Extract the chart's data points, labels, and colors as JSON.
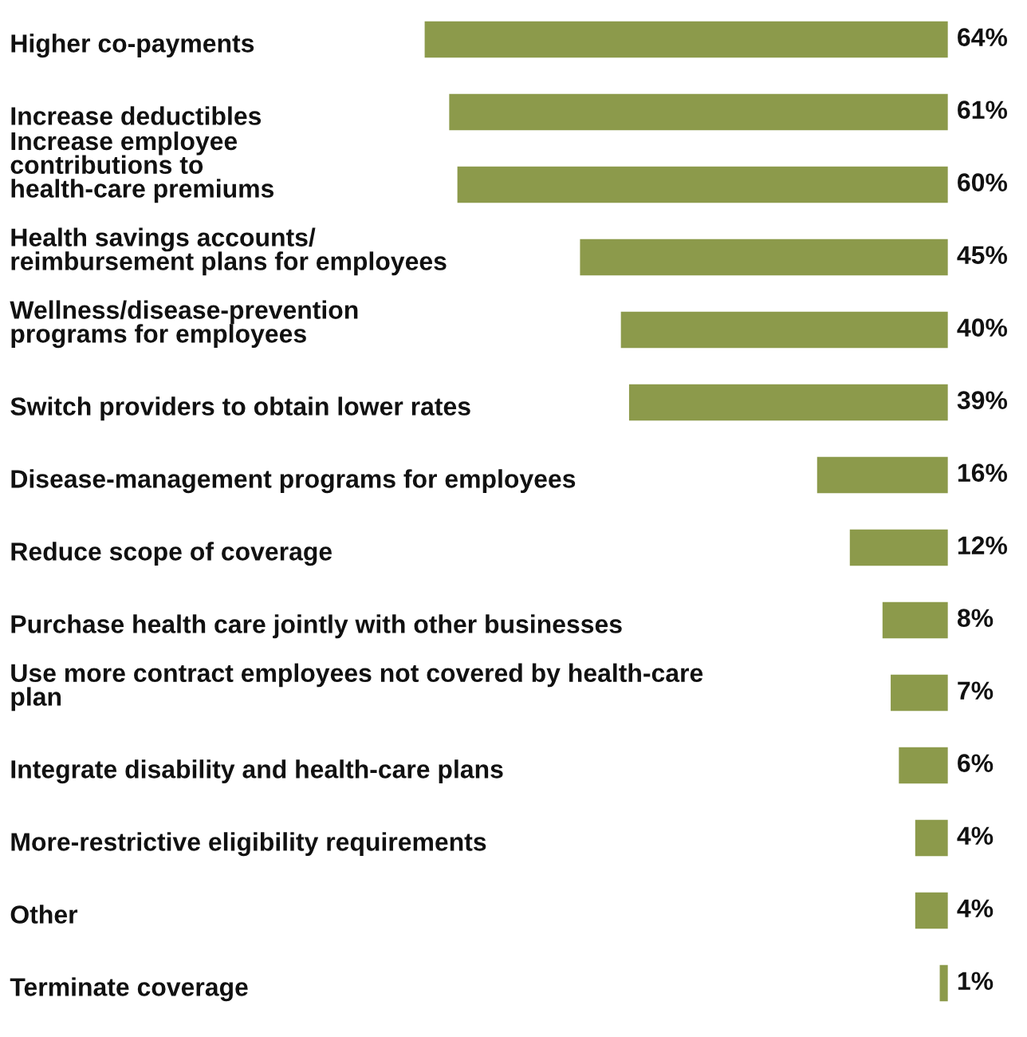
{
  "chart_data": {
    "type": "bar",
    "orientation": "horizontal",
    "data_labels": true,
    "categories": [
      "Higher co-payments",
      "Increase deductibles",
      "Increase employee\ncontributions to\nhealth-care premiums",
      "Health savings accounts/\nreimbursement plans for employees",
      "Wellness/disease-prevention\nprograms for employees",
      "Switch providers to obtain lower rates",
      "Disease-management programs for employees",
      "Reduce scope of coverage",
      "Purchase health care jointly with other businesses",
      "Use more contract employees not covered by health-care\nplan",
      "Integrate disability and health-care plans",
      "More-restrictive eligibility requirements",
      "Other",
      "Terminate coverage"
    ],
    "values": [
      64,
      61,
      60,
      45,
      40,
      39,
      16,
      12,
      8,
      7,
      6,
      4,
      4,
      1
    ],
    "value_labels": [
      "64%",
      "61%",
      "60%",
      "45%",
      "40%",
      "39%",
      "16%",
      "12%",
      "8%",
      "7%",
      "6%",
      "4%",
      "4%",
      "1%"
    ],
    "color": "#8c9a4b"
  }
}
